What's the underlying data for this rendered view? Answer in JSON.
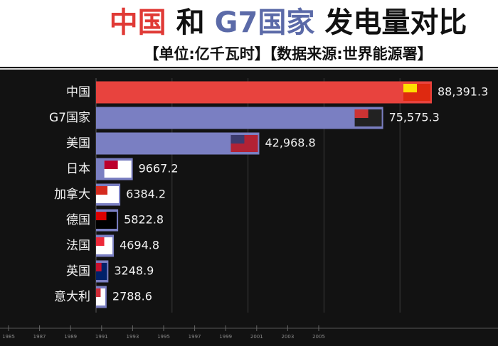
{
  "chart_data": {
    "type": "bar",
    "orientation": "horizontal",
    "title_parts": [
      {
        "text": "中国",
        "color": "#e03a36"
      },
      {
        "text": "和",
        "color": "#111111"
      },
      {
        "text": "G7国家",
        "color": "#5b6aa8"
      },
      {
        "text": "发电量对比",
        "color": "#111111"
      }
    ],
    "subtitle": "【单位:亿千瓦时】【数据来源:世界能源署】",
    "categories": [
      "中国",
      "G7国家",
      "美国",
      "日本",
      "加拿大",
      "德国",
      "法国",
      "英国",
      "意大利"
    ],
    "values": [
      88391.3,
      75575.3,
      42968.8,
      9667.2,
      6384.2,
      5822.8,
      4694.8,
      3248.9,
      2788.6
    ],
    "value_labels": [
      "88,391.3",
      "75,575.3",
      "42,968.8",
      "9667.2",
      "6384.2",
      "5822.8",
      "4694.8",
      "3248.9",
      "2788.6"
    ],
    "colors": [
      "#e8433e",
      "#7a7fc2",
      "#7a7fc2",
      "#7a7fc2",
      "#7a7fc2",
      "#7a7fc2",
      "#7a7fc2",
      "#7a7fc2",
      "#7a7fc2"
    ],
    "xlim": [
      0,
      100000
    ],
    "xticks": [
      20000,
      40000,
      60000,
      80000
    ],
    "grid": true,
    "timeline": [
      "1985",
      "1987",
      "1989",
      "1991",
      "1993",
      "1995",
      "1997",
      "1999",
      "2001",
      "2003",
      "2005"
    ]
  }
}
